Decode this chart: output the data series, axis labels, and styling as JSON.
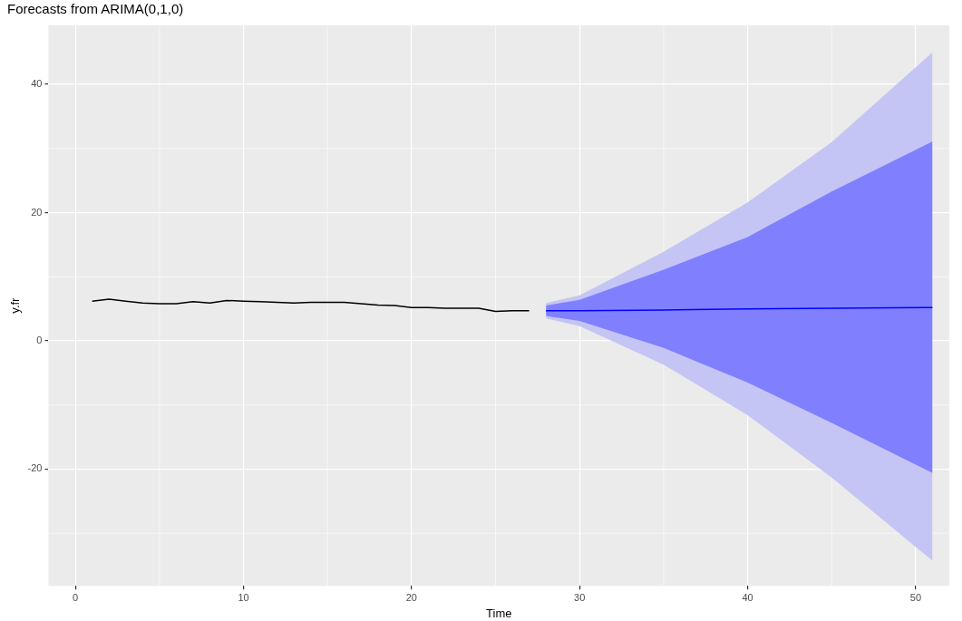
{
  "chart_data": {
    "type": "line",
    "title": "Forecasts from ARIMA(0,1,0)",
    "xlabel": "Time",
    "ylabel": "y.fr",
    "xlim": [
      -1.6,
      52
    ],
    "xticks": [
      0,
      10,
      20,
      30,
      40,
      50
    ],
    "ylim": [
      -38.2,
      49.2
    ],
    "yticks": [
      -20,
      0,
      20,
      40
    ],
    "grid": true,
    "legend": false,
    "marker": "none",
    "line_style": "solid",
    "series": [
      {
        "color": "#000000",
        "x": [
          1,
          2,
          3,
          4,
          5,
          6,
          7,
          8,
          9,
          10,
          11,
          12,
          13,
          14,
          15,
          16,
          17,
          18,
          19,
          20,
          21,
          22,
          23,
          24,
          25,
          26,
          27
        ],
        "values": [
          6.2,
          6.5,
          6.2,
          5.9,
          5.8,
          5.8,
          6.1,
          5.9,
          6.3,
          6.2,
          6.1,
          6.0,
          5.9,
          6.0,
          6.0,
          6.0,
          5.8,
          5.6,
          5.5,
          5.2,
          5.2,
          5.1,
          5.1,
          5.1,
          4.6,
          4.7,
          4.7
        ]
      },
      {
        "color": "#c5c5f5",
        "x": [
          28,
          30,
          35,
          40,
          45,
          51
        ],
        "values": [
          null,
          null,
          null,
          null,
          null,
          null
        ],
        "lower": [
          3.5,
          2.3,
          -3.7,
          -11.6,
          -21.3,
          -34.3
        ],
        "upper": [
          5.9,
          7.1,
          13.9,
          21.6,
          31,
          45
        ]
      },
      {
        "color": "#0000ff",
        "x": [
          28,
          30,
          35,
          40,
          45,
          51
        ],
        "values": [
          4.7,
          4.7,
          4.8,
          5.0,
          5.1,
          5.2
        ],
        "lower": [
          3.9,
          3.1,
          -1.1,
          -6.5,
          -12.8,
          -20.6
        ],
        "upper": [
          5.5,
          6.4,
          11.1,
          16.2,
          23.3,
          31.1
        ]
      }
    ]
  }
}
